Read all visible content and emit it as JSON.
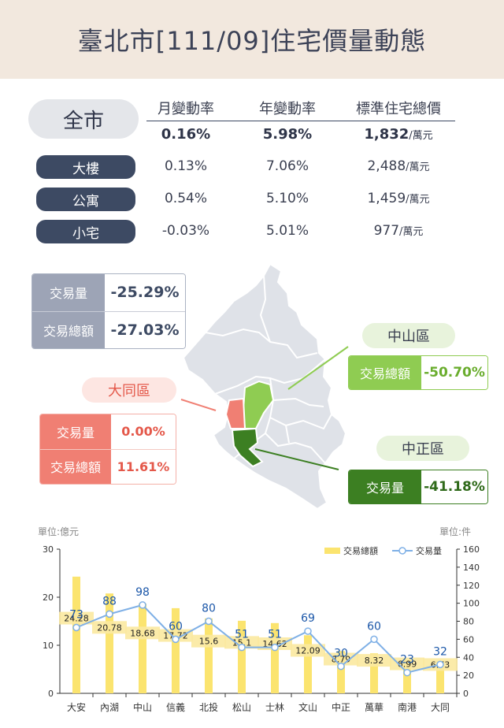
{
  "title": "臺北市[111/09]住宅價量動態",
  "stats": {
    "headers": [
      "月變動率",
      "年變動率",
      "標準住宅總價"
    ],
    "rows": [
      {
        "label": "全市",
        "month": "0.16%",
        "year": "5.98%",
        "price": "1,832",
        "unit": "/萬元"
      },
      {
        "label": "大樓",
        "month": "0.13%",
        "year": "7.06%",
        "price": "2,488",
        "unit": "/萬元"
      },
      {
        "label": "公寓",
        "month": "0.54%",
        "year": "5.10%",
        "price": "1,459",
        "unit": "/萬元"
      },
      {
        "label": "小宅",
        "month": "-0.03%",
        "year": "5.01%",
        "price": "977",
        "unit": "/萬元"
      }
    ]
  },
  "overall": {
    "volume_label": "交易量",
    "volume_value": "-25.29%",
    "amount_label": "交易總額",
    "amount_value": "-27.03%"
  },
  "districts": {
    "datong": {
      "name": "大同區",
      "volume_label": "交易量",
      "volume_value": "0.00%",
      "amount_label": "交易總額",
      "amount_value": "11.61%"
    },
    "zhongshan": {
      "name": "中山區",
      "amount_label": "交易總額",
      "amount_value": "-50.70%"
    },
    "zhongzheng": {
      "name": "中正區",
      "volume_label": "交易量",
      "volume_value": "-41.18%"
    }
  },
  "colors": {
    "navy": "#3d4a63",
    "salmon": "#f07f73",
    "light_green": "#8fcc52",
    "dark_green": "#3c7f22",
    "bar_yellow": "#fbe46f",
    "line_blue": "#7fb0e6",
    "label_blue": "#1a56a8"
  },
  "chart_data": {
    "type": "bar",
    "categories": [
      "大安",
      "內湖",
      "中山",
      "信義",
      "北投",
      "松山",
      "士林",
      "文山",
      "中正",
      "萬華",
      "南港",
      "大同"
    ],
    "left_unit": "單位:億元",
    "right_unit": "單位:件",
    "y_left": {
      "min": 0,
      "max": 30,
      "ticks": [
        0,
        10,
        20,
        30
      ]
    },
    "y_right": {
      "min": 0,
      "max": 160,
      "ticks": [
        0,
        20,
        40,
        60,
        80,
        100,
        120,
        140,
        160
      ]
    },
    "series": [
      {
        "name": "交易總額",
        "axis": "left",
        "kind": "bar",
        "values": [
          24.28,
          20.78,
          18.68,
          17.72,
          15.6,
          15.1,
          14.62,
          12.09,
          8.79,
          8.32,
          6.99,
          6.73
        ]
      },
      {
        "name": "交易量",
        "axis": "right",
        "kind": "line",
        "values": [
          73,
          88,
          98,
          60,
          80,
          51,
          51,
          69,
          30,
          60,
          23,
          32
        ]
      }
    ],
    "legend": "top-right",
    "grid": false
  }
}
